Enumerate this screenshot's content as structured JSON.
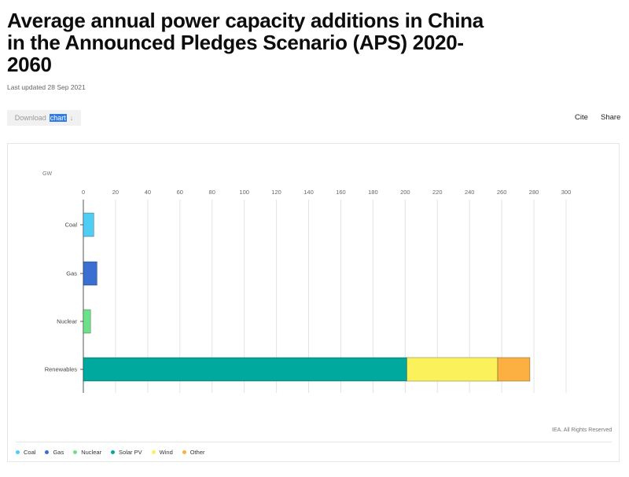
{
  "page": {
    "title": "Average annual power capacity additions in China in the Announced Pledges Scenario (APS) 2020-2060",
    "last_updated": "Last updated 28 Sep 2021",
    "download_label": "Download",
    "download_highlight": "chart",
    "download_arrow": "↓",
    "cite_label": "Cite",
    "share_label": "Share",
    "copyright": "IEA. All Rights Reserved"
  },
  "colors": {
    "Coal": "#4fcdf5",
    "Gas": "#3a6fd1",
    "Nuclear": "#6de08a",
    "Solar PV": "#00a99d",
    "Wind": "#fbf15b",
    "Other": "#fcb041",
    "grid": "#e4e4e4",
    "axis": "#555555"
  },
  "chart_data": {
    "type": "bar",
    "orientation": "horizontal",
    "stacked": true,
    "unit_label": "GW",
    "xlim": [
      0,
      300
    ],
    "xticks": [
      0,
      20,
      40,
      60,
      80,
      100,
      120,
      140,
      160,
      180,
      200,
      220,
      240,
      260,
      280,
      300
    ],
    "categories": [
      "Coal",
      "Gas",
      "Nuclear",
      "Renewables"
    ],
    "series": [
      {
        "name": "Coal",
        "values": [
          6.5,
          0,
          0,
          0
        ]
      },
      {
        "name": "Gas",
        "values": [
          0,
          8.5,
          0,
          0
        ]
      },
      {
        "name": "Nuclear",
        "values": [
          0,
          0,
          4.5,
          0
        ]
      },
      {
        "name": "Solar PV",
        "values": [
          0,
          0,
          0,
          201
        ]
      },
      {
        "name": "Wind",
        "values": [
          0,
          0,
          0,
          56.5
        ]
      },
      {
        "name": "Other",
        "values": [
          0,
          0,
          0,
          20
        ]
      }
    ],
    "legend": [
      "Coal",
      "Gas",
      "Nuclear",
      "Solar PV",
      "Wind",
      "Other"
    ],
    "grid": true,
    "legend_position": "bottom-left"
  }
}
